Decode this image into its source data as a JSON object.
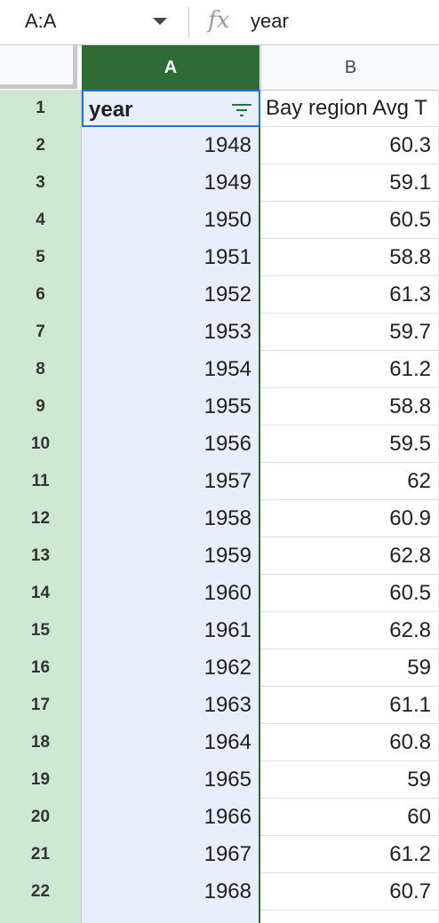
{
  "formula_bar": {
    "name_box": "A:A",
    "fx_label": "fx",
    "content": "year"
  },
  "columns": [
    {
      "label": "A"
    },
    {
      "label": "B"
    }
  ],
  "header_row": {
    "row_number": "1",
    "a": "year",
    "b": "Bay region Avg T"
  },
  "rows": [
    {
      "n": "2",
      "a": "1948",
      "b": "60.3"
    },
    {
      "n": "3",
      "a": "1949",
      "b": "59.1"
    },
    {
      "n": "4",
      "a": "1950",
      "b": "60.5"
    },
    {
      "n": "5",
      "a": "1951",
      "b": "58.8"
    },
    {
      "n": "6",
      "a": "1952",
      "b": "61.3"
    },
    {
      "n": "7",
      "a": "1953",
      "b": "59.7"
    },
    {
      "n": "8",
      "a": "1954",
      "b": "61.2"
    },
    {
      "n": "9",
      "a": "1955",
      "b": "58.8"
    },
    {
      "n": "10",
      "a": "1956",
      "b": "59.5"
    },
    {
      "n": "11",
      "a": "1957",
      "b": "62"
    },
    {
      "n": "12",
      "a": "1958",
      "b": "60.9"
    },
    {
      "n": "13",
      "a": "1959",
      "b": "62.8"
    },
    {
      "n": "14",
      "a": "1960",
      "b": "60.5"
    },
    {
      "n": "15",
      "a": "1961",
      "b": "62.8"
    },
    {
      "n": "16",
      "a": "1962",
      "b": "59"
    },
    {
      "n": "17",
      "a": "1963",
      "b": "61.1"
    },
    {
      "n": "18",
      "a": "1964",
      "b": "60.8"
    },
    {
      "n": "19",
      "a": "1965",
      "b": "59"
    },
    {
      "n": "20",
      "a": "1966",
      "b": "60"
    },
    {
      "n": "21",
      "a": "1967",
      "b": "61.2"
    },
    {
      "n": "22",
      "a": "1968",
      "b": "60.7"
    }
  ]
}
